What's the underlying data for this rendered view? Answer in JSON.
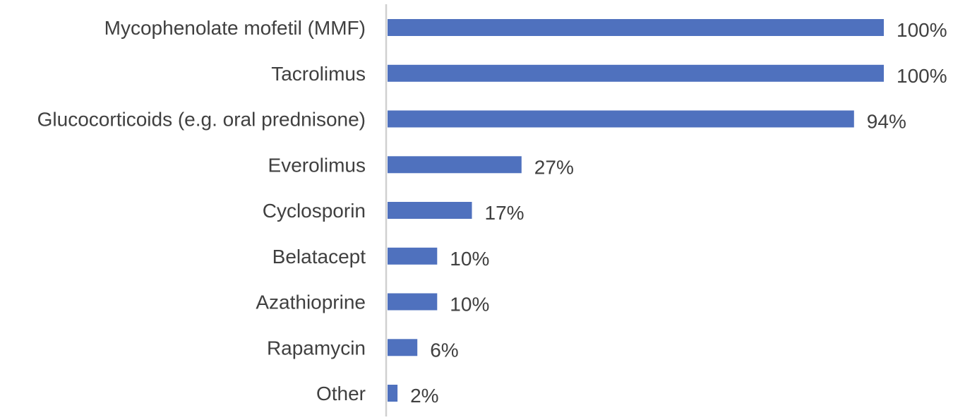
{
  "chart_data": {
    "type": "bar",
    "orientation": "horizontal",
    "title": "",
    "xlabel": "",
    "ylabel": "",
    "categories": [
      "Mycophenolate mofetil (MMF)",
      "Tacrolimus",
      "Glucocorticoids (e.g. oral prednisone)",
      "Everolimus",
      "Cyclosporin",
      "Belatacept",
      "Azathioprine",
      "Rapamycin",
      "Other"
    ],
    "values": [
      100,
      100,
      94,
      27,
      17,
      10,
      10,
      6,
      2
    ],
    "value_labels": [
      "100%",
      "100%",
      "94%",
      "27%",
      "17%",
      "10%",
      "10%",
      "6%",
      "2%"
    ],
    "xlim": [
      0,
      100
    ],
    "grid": false,
    "legend": "none",
    "colors": {
      "bar": "#4F71BE",
      "axis": "#D0D0D0",
      "text": "#404040"
    }
  }
}
